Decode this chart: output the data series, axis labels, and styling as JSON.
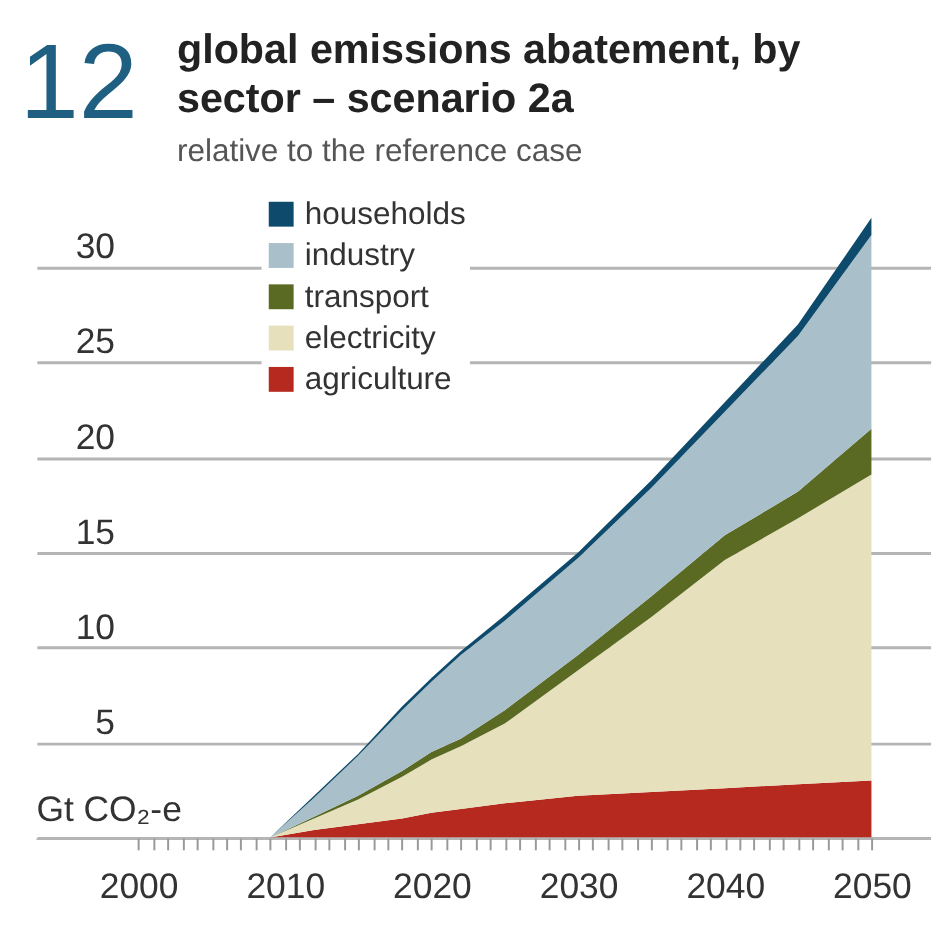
{
  "chart_data": {
    "type": "area",
    "title": "global emissions abatement, by sector – scenario 2a",
    "subtitle": "relative to the reference case",
    "annotations": [
      "12"
    ],
    "ylabel": "Gt CO₂-e",
    "stacked": true,
    "x": [
      2009,
      2012,
      2015,
      2018,
      2020,
      2022,
      2025,
      2030,
      2035,
      2040,
      2045,
      2050
    ],
    "series": [
      {
        "name": "agriculture",
        "color": "#b5291f",
        "values": [
          0,
          0.4,
          0.7,
          1.0,
          1.3,
          1.5,
          1.8,
          2.2,
          2.4,
          2.6,
          2.8,
          3.0
        ]
      },
      {
        "name": "electricity",
        "color": "#e6e1bc",
        "values": [
          0,
          0.6,
          1.3,
          2.2,
          2.8,
          3.3,
          4.2,
          6.6,
          9.2,
          12.0,
          14.0,
          16.1
        ]
      },
      {
        "name": "transport",
        "color": "#5a6a22",
        "values": [
          0,
          0.1,
          0.2,
          0.3,
          0.4,
          0.4,
          0.7,
          0.8,
          1.1,
          1.3,
          1.4,
          2.4
        ]
      },
      {
        "name": "industry",
        "color": "#a9bfca",
        "values": [
          0,
          1.0,
          2.1,
          3.2,
          3.7,
          4.4,
          4.7,
          5.1,
          5.7,
          6.5,
          8.2,
          10.2
        ]
      },
      {
        "name": "households",
        "color": "#0d4a6b",
        "values": [
          0,
          0.1,
          0.1,
          0.2,
          0.2,
          0.2,
          0.3,
          0.3,
          0.4,
          0.5,
          0.6,
          0.9
        ]
      }
    ],
    "xlim": [
      1993,
      2054
    ],
    "xticks": [
      2000,
      {
        "value": 2001,
        "label": null
      },
      {
        "value": 2002,
        "label": null
      },
      {
        "value": 2003,
        "label": null
      },
      {
        "value": 2004,
        "label": null
      },
      {
        "value": 2005,
        "label": null
      },
      {
        "value": 2006,
        "label": null
      },
      {
        "value": 2007,
        "label": null
      },
      {
        "value": 2008,
        "label": null
      },
      {
        "value": 2009,
        "label": null
      },
      2010,
      {
        "value": 2011,
        "label": null
      },
      {
        "value": 2012,
        "label": null
      },
      {
        "value": 2013,
        "label": null
      },
      {
        "value": 2014,
        "label": null
      },
      {
        "value": 2015,
        "label": null
      },
      {
        "value": 2016,
        "label": null
      },
      {
        "value": 2017,
        "label": null
      },
      {
        "value": 2018,
        "label": null
      },
      {
        "value": 2019,
        "label": null
      },
      2020,
      {
        "value": 2021,
        "label": null
      },
      {
        "value": 2022,
        "label": null
      },
      {
        "value": 2023,
        "label": null
      },
      {
        "value": 2024,
        "label": null
      },
      {
        "value": 2025,
        "label": null
      },
      {
        "value": 2026,
        "label": null
      },
      {
        "value": 2027,
        "label": null
      },
      {
        "value": 2028,
        "label": null
      },
      {
        "value": 2029,
        "label": null
      },
      2030,
      {
        "value": 2031,
        "label": null
      },
      {
        "value": 2032,
        "label": null
      },
      {
        "value": 2033,
        "label": null
      },
      {
        "value": 2034,
        "label": null
      },
      {
        "value": 2035,
        "label": null
      },
      {
        "value": 2036,
        "label": null
      },
      {
        "value": 2037,
        "label": null
      },
      {
        "value": 2038,
        "label": null
      },
      {
        "value": 2039,
        "label": null
      },
      2040,
      {
        "value": 2041,
        "label": null
      },
      {
        "value": 2042,
        "label": null
      },
      {
        "value": 2043,
        "label": null
      },
      {
        "value": 2044,
        "label": null
      },
      {
        "value": 2045,
        "label": null
      },
      {
        "value": 2046,
        "label": null
      },
      {
        "value": 2047,
        "label": null
      },
      {
        "value": 2048,
        "label": null
      },
      {
        "value": 2049,
        "label": null
      },
      2050
    ],
    "ylim": [
      0,
      33
    ],
    "yticks": [
      {
        "value": 0,
        "label": null
      },
      5,
      10,
      15,
      20,
      25,
      30
    ],
    "grid": "y",
    "legend": "top left"
  }
}
